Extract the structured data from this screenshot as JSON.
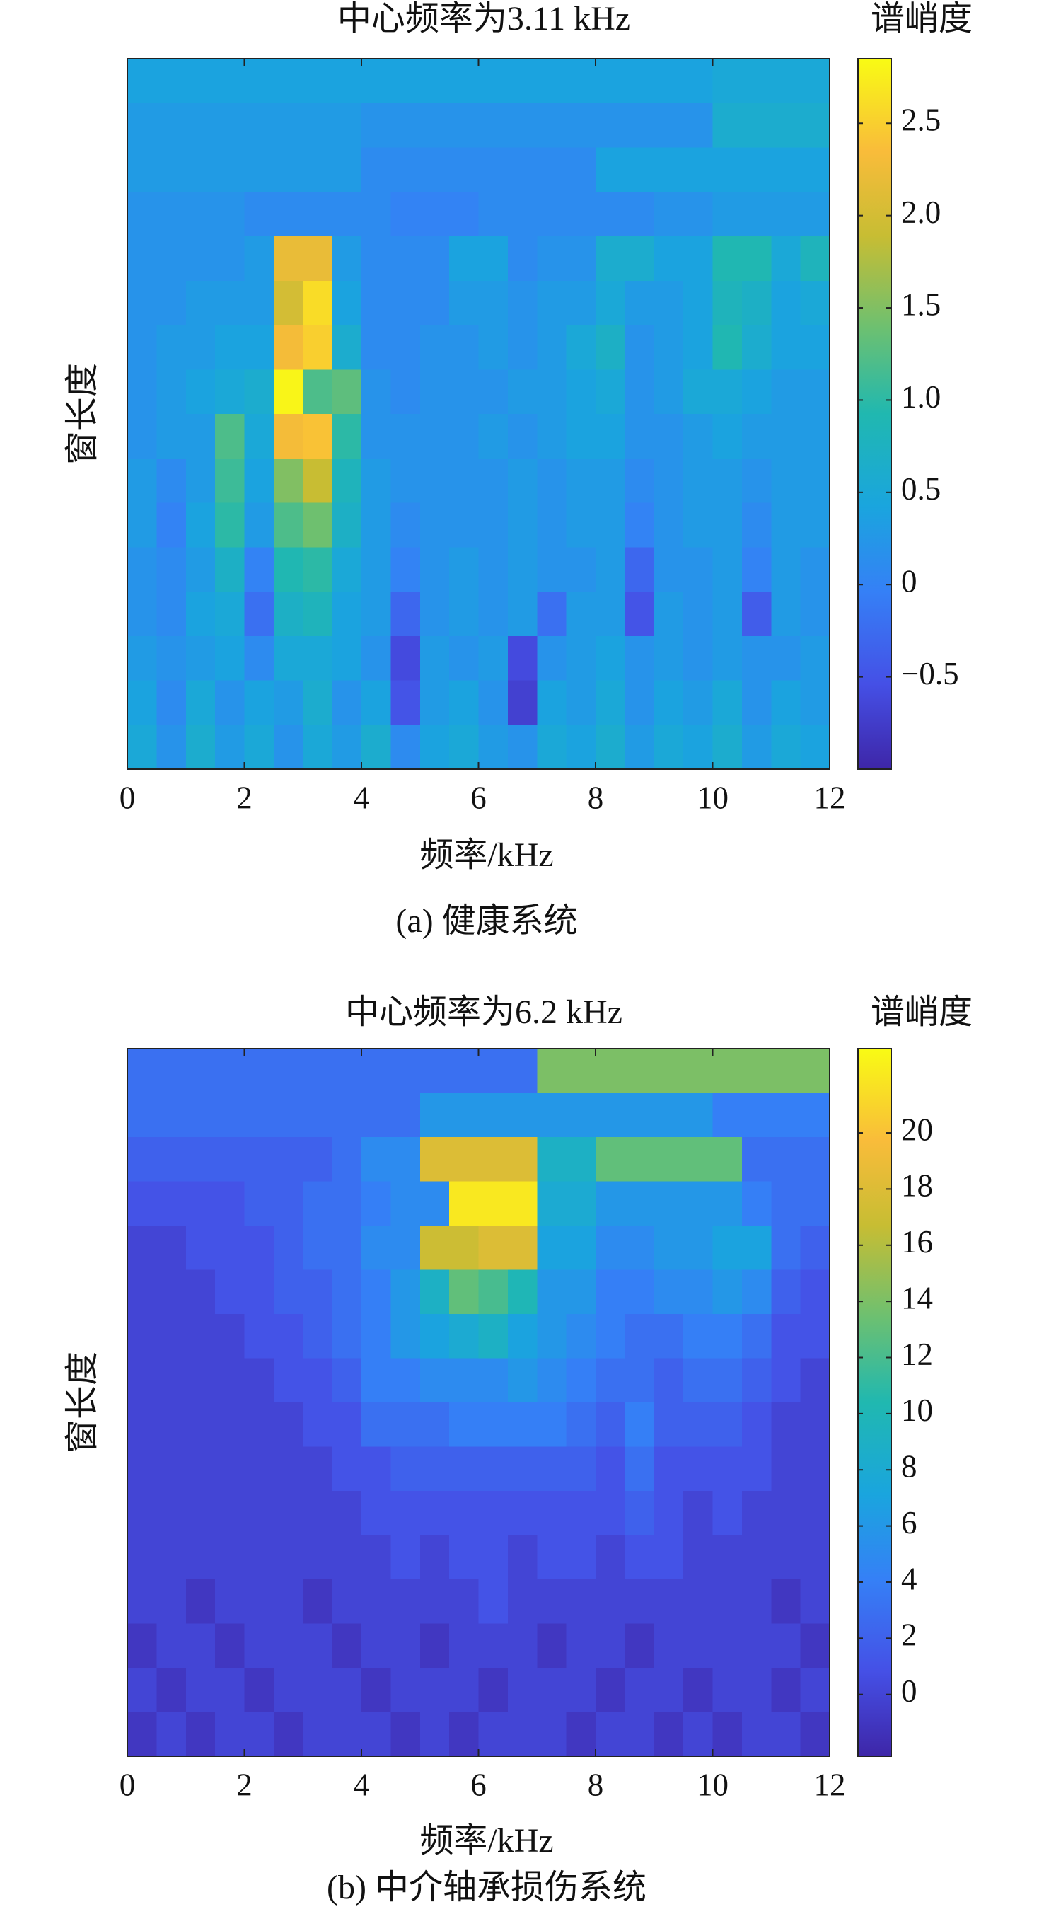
{
  "chart_data": [
    {
      "type": "heatmap",
      "title": "中心频率为3.11 kHz",
      "colorbar_label": "谱峭度",
      "xlabel": "频率/kHz",
      "ylabel": "窗长度",
      "caption": "(a) 健康系统",
      "xlim": [
        0,
        12
      ],
      "xticks": [
        0,
        2,
        4,
        6,
        8,
        10,
        12
      ],
      "clim": [
        -1,
        2.85
      ],
      "cticks": [
        {
          "value": -0.5,
          "label": "−0.5"
        },
        0,
        0.5,
        {
          "value": 1,
          "label": "1.0"
        },
        1.5,
        {
          "value": 2,
          "label": "2.0"
        },
        2.5
      ],
      "colormap": "parula",
      "z": [
        [
          0.4,
          0.4,
          0.4,
          0.4,
          0.4,
          0.4,
          0.4,
          0.4,
          0.4,
          0.4,
          0.4,
          0.4,
          0.4,
          0.4,
          0.4,
          0.4,
          0.4,
          0.4,
          0.4,
          0.4,
          0.5,
          0.5,
          0.5,
          0.5
        ],
        [
          0.3,
          0.3,
          0.3,
          0.3,
          0.3,
          0.3,
          0.3,
          0.3,
          0.2,
          0.2,
          0.2,
          0.2,
          0.2,
          0.2,
          0.2,
          0.2,
          0.2,
          0.2,
          0.2,
          0.2,
          0.6,
          0.6,
          0.6,
          0.6
        ],
        [
          0.3,
          0.3,
          0.3,
          0.3,
          0.3,
          0.3,
          0.3,
          0.3,
          0.1,
          0.1,
          0.1,
          0.1,
          0.1,
          0.1,
          0.1,
          0.1,
          0.4,
          0.4,
          0.4,
          0.4,
          0.4,
          0.4,
          0.4,
          0.4
        ],
        [
          0.2,
          0.2,
          0.2,
          0.2,
          0.1,
          0.1,
          0.1,
          0.1,
          0.1,
          0.0,
          0.0,
          0.0,
          0.1,
          0.1,
          0.1,
          0.1,
          0.1,
          0.1,
          0.2,
          0.2,
          0.3,
          0.3,
          0.3,
          0.3
        ],
        [
          0.2,
          0.2,
          0.2,
          0.2,
          0.3,
          2.2,
          2.2,
          0.3,
          0.1,
          0.1,
          0.1,
          0.4,
          0.4,
          0.1,
          0.2,
          0.2,
          0.6,
          0.6,
          0.4,
          0.4,
          0.9,
          0.9,
          0.5,
          0.8
        ],
        [
          0.2,
          0.2,
          0.3,
          0.3,
          0.3,
          2.0,
          2.6,
          0.4,
          0.1,
          0.1,
          0.1,
          0.3,
          0.3,
          0.2,
          0.3,
          0.3,
          0.5,
          0.3,
          0.3,
          0.4,
          0.8,
          0.7,
          0.4,
          0.5
        ],
        [
          0.2,
          0.3,
          0.3,
          0.4,
          0.4,
          2.3,
          2.5,
          0.6,
          0.1,
          0.1,
          0.2,
          0.2,
          0.3,
          0.2,
          0.3,
          0.5,
          0.7,
          0.2,
          0.3,
          0.4,
          0.9,
          0.6,
          0.4,
          0.4
        ],
        [
          0.2,
          0.3,
          0.4,
          0.5,
          0.6,
          2.8,
          1.2,
          1.3,
          0.2,
          0.1,
          0.2,
          0.2,
          0.2,
          0.3,
          0.3,
          0.4,
          0.5,
          0.2,
          0.3,
          0.5,
          0.5,
          0.4,
          0.3,
          0.3
        ],
        [
          0.2,
          0.3,
          0.3,
          1.2,
          0.5,
          2.3,
          2.4,
          1.0,
          0.2,
          0.2,
          0.2,
          0.2,
          0.3,
          0.2,
          0.3,
          0.4,
          0.4,
          0.2,
          0.2,
          0.3,
          0.4,
          0.3,
          0.3,
          0.3
        ],
        [
          0.3,
          0.1,
          0.3,
          1.1,
          0.4,
          1.5,
          1.9,
          0.8,
          0.3,
          0.2,
          0.2,
          0.2,
          0.2,
          0.3,
          0.2,
          0.3,
          0.3,
          0.1,
          0.2,
          0.3,
          0.3,
          0.2,
          0.3,
          0.3
        ],
        [
          0.3,
          0.0,
          0.4,
          1.0,
          0.3,
          1.2,
          1.4,
          0.7,
          0.3,
          0.1,
          0.2,
          0.2,
          0.2,
          0.3,
          0.2,
          0.3,
          0.3,
          0.0,
          0.2,
          0.3,
          0.3,
          0.1,
          0.3,
          0.3
        ],
        [
          0.2,
          0.1,
          0.3,
          0.7,
          0.0,
          0.9,
          1.0,
          0.5,
          0.3,
          0.0,
          0.2,
          0.3,
          0.2,
          0.3,
          0.2,
          0.2,
          0.3,
          -0.3,
          0.2,
          0.2,
          0.3,
          0.0,
          0.3,
          0.2
        ],
        [
          0.2,
          0.1,
          0.4,
          0.5,
          -0.2,
          0.7,
          0.8,
          0.4,
          0.3,
          -0.3,
          0.2,
          0.3,
          0.2,
          0.3,
          -0.2,
          0.3,
          0.3,
          -0.5,
          0.3,
          0.2,
          0.3,
          -0.4,
          0.3,
          0.2
        ],
        [
          0.3,
          0.2,
          0.3,
          0.4,
          0.1,
          0.5,
          0.5,
          0.4,
          0.2,
          -0.6,
          0.3,
          0.2,
          0.3,
          -0.6,
          0.2,
          0.3,
          0.4,
          0.2,
          0.3,
          0.2,
          0.3,
          0.2,
          0.2,
          0.3
        ],
        [
          0.4,
          0.1,
          0.5,
          0.2,
          0.4,
          0.3,
          0.6,
          0.2,
          0.4,
          -0.5,
          0.3,
          0.4,
          0.2,
          -0.7,
          0.4,
          0.3,
          0.5,
          0.2,
          0.4,
          0.3,
          0.5,
          0.2,
          0.4,
          0.3
        ],
        [
          0.5,
          0.2,
          0.6,
          0.3,
          0.5,
          0.2,
          0.5,
          0.3,
          0.6,
          0.1,
          0.4,
          0.5,
          0.3,
          0.2,
          0.5,
          0.4,
          0.6,
          0.3,
          0.5,
          0.4,
          0.6,
          0.3,
          0.5,
          0.4
        ]
      ]
    },
    {
      "type": "heatmap",
      "title": "中心频率为6.2 kHz",
      "colorbar_label": "谱峭度",
      "xlabel": "频率/kHz",
      "ylabel": "窗长度",
      "caption": "(b) 中介轴承损伤系统",
      "xlim": [
        0,
        12
      ],
      "xticks": [
        0,
        2,
        4,
        6,
        8,
        10,
        12
      ],
      "clim": [
        -2.2,
        23
      ],
      "cticks": [
        0,
        2,
        4,
        6,
        8,
        10,
        12,
        14,
        16,
        18,
        20
      ],
      "colormap": "parula",
      "z": [
        [
          3,
          3,
          3,
          3,
          3,
          3,
          3,
          3,
          3,
          3,
          3,
          3,
          3,
          3,
          14,
          14,
          14,
          14,
          14,
          14,
          14,
          14,
          14,
          14
        ],
        [
          3,
          3,
          3,
          3,
          3,
          3,
          3,
          3,
          3,
          3,
          6,
          6,
          6,
          6,
          6,
          6,
          6,
          6,
          6,
          6,
          4,
          4,
          4,
          4
        ],
        [
          2,
          2,
          2,
          2,
          2,
          2,
          2,
          3,
          5,
          5,
          18,
          18,
          18,
          18,
          9,
          9,
          13,
          13,
          13,
          13,
          13,
          3,
          3,
          3
        ],
        [
          1,
          1,
          1,
          1,
          2,
          2,
          3,
          3,
          4,
          5,
          5,
          22,
          22,
          22,
          8,
          8,
          6,
          6,
          6,
          6,
          6,
          4,
          3,
          3
        ],
        [
          0,
          0,
          1,
          1,
          1,
          2,
          3,
          3,
          5,
          5,
          17,
          17,
          18,
          18,
          7,
          7,
          5,
          5,
          6,
          6,
          7,
          7,
          3,
          2
        ],
        [
          0,
          0,
          0,
          1,
          1,
          2,
          2,
          3,
          4,
          6,
          9,
          13,
          12,
          10,
          6,
          6,
          4,
          4,
          5,
          5,
          6,
          5,
          2,
          1
        ],
        [
          0,
          0,
          0,
          0,
          1,
          1,
          2,
          3,
          4,
          6,
          7,
          8,
          9,
          7,
          6,
          5,
          4,
          3,
          3,
          4,
          4,
          3,
          1,
          1
        ],
        [
          0,
          0,
          0,
          0,
          0,
          1,
          1,
          2,
          4,
          4,
          5,
          5,
          5,
          6,
          5,
          4,
          3,
          3,
          2,
          3,
          3,
          2,
          1,
          0
        ],
        [
          0,
          0,
          0,
          0,
          0,
          0,
          1,
          1,
          3,
          3,
          3,
          4,
          4,
          4,
          4,
          3,
          2,
          4,
          2,
          2,
          2,
          1,
          0,
          0
        ],
        [
          0,
          0,
          0,
          0,
          0,
          0,
          0,
          1,
          1,
          2,
          2,
          2,
          2,
          2,
          2,
          2,
          1,
          3,
          1,
          1,
          1,
          1,
          0,
          0
        ],
        [
          0,
          0,
          0,
          0,
          0,
          0,
          0,
          0,
          1,
          1,
          1,
          1,
          1,
          1,
          1,
          1,
          1,
          2,
          1,
          0,
          1,
          0,
          0,
          0
        ],
        [
          0,
          0,
          0,
          0,
          0,
          0,
          0,
          0,
          0,
          1,
          0,
          1,
          1,
          0,
          1,
          1,
          0,
          1,
          1,
          0,
          0,
          0,
          0,
          0
        ],
        [
          0,
          0,
          -1,
          0,
          0,
          0,
          -1,
          0,
          0,
          0,
          0,
          0,
          1,
          0,
          0,
          0,
          0,
          0,
          0,
          0,
          0,
          0,
          -1,
          0
        ],
        [
          -1,
          0,
          0,
          -1,
          0,
          0,
          0,
          -1,
          0,
          0,
          -1,
          0,
          0,
          0,
          -1,
          0,
          0,
          -1,
          0,
          0,
          0,
          0,
          0,
          -1
        ],
        [
          0,
          -1,
          0,
          0,
          -1,
          0,
          0,
          0,
          -1,
          0,
          0,
          0,
          -1,
          0,
          0,
          0,
          -1,
          0,
          0,
          -1,
          0,
          0,
          -1,
          0
        ],
        [
          -1,
          0,
          -1,
          0,
          0,
          -1,
          0,
          0,
          0,
          -1,
          0,
          -1,
          0,
          0,
          0,
          -1,
          0,
          0,
          -1,
          0,
          -1,
          0,
          0,
          -1
        ]
      ]
    }
  ]
}
